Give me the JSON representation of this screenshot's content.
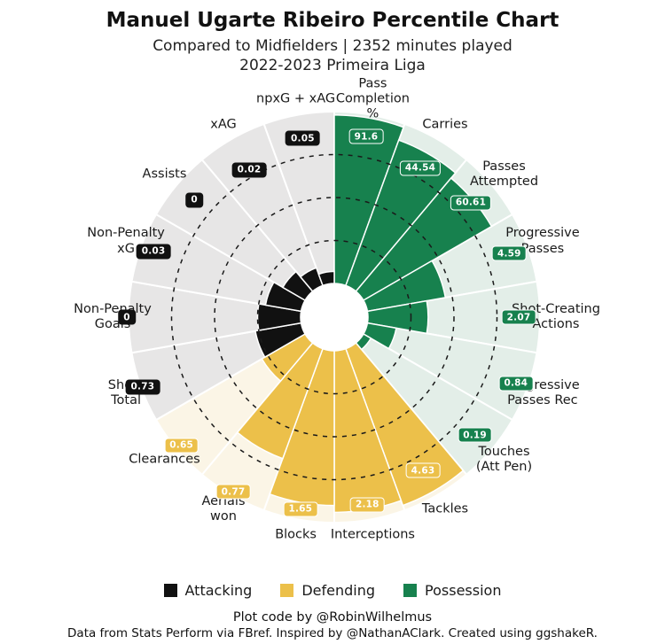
{
  "header": {
    "title": "Manuel Ugarte Ribeiro Percentile Chart",
    "subtitle1": "Compared to Midfielders | 2352 minutes played",
    "subtitle2": "2022-2023 Primeira Liga"
  },
  "chart_data": {
    "type": "bar",
    "variant": "circular-percentile-pizza",
    "title": "Manuel Ugarte Ribeiro Percentile Chart",
    "subtitle": "Compared to Midfielders | 2352 minutes played",
    "season": "2022-2023 Primeira Liga",
    "units": "bar length = percentile (0-100); badge shows per-90 value",
    "percentile_range": [
      0,
      100
    ],
    "gridlines": [
      25,
      50,
      75
    ],
    "grid_style": "dashed",
    "legend_position": "bottom",
    "groups": {
      "attacking": {
        "name": "Attacking",
        "bar": "#111111",
        "bg": "#e7e6e6",
        "badge_text": "#ffffff"
      },
      "defending": {
        "name": "Defending",
        "bar": "#ecc04a",
        "bg": "#fbf5e6",
        "badge_text": "#ffffff"
      },
      "possession": {
        "name": "Possession",
        "bar": "#17814e",
        "bg": "#e3eee8",
        "badge_text": "#ffffff"
      }
    },
    "slices": [
      {
        "label": "Pass\nCompletion\n%",
        "group": "possession",
        "value": "91.6",
        "percentile": 98
      },
      {
        "label": "Carries",
        "group": "possession",
        "value": "44.54",
        "percentile": 90
      },
      {
        "label": "Passes\nAttempted",
        "group": "possession",
        "value": "60.61",
        "percentile": 86
      },
      {
        "label": "Progressive\nPasses",
        "group": "possession",
        "value": "4.59",
        "percentile": 46
      },
      {
        "label": "Shot-Creating\nActions",
        "group": "possession",
        "value": "2.07",
        "percentile": 35
      },
      {
        "label": "Progressive\nPasses Rec",
        "group": "possession",
        "value": "0.84",
        "percentile": 17
      },
      {
        "label": "Touches\n(Att Pen)",
        "group": "possession",
        "value": "0.19",
        "percentile": 5
      },
      {
        "label": "Tackles",
        "group": "defending",
        "value": "4.63",
        "percentile": 97
      },
      {
        "label": "Interceptions",
        "group": "defending",
        "value": "2.18",
        "percentile": 94
      },
      {
        "label": "Blocks",
        "group": "defending",
        "value": "1.65",
        "percentile": 90
      },
      {
        "label": "Aerials\nwon",
        "group": "defending",
        "value": "0.77",
        "percentile": 68
      },
      {
        "label": "Clearances",
        "group": "defending",
        "value": "0.65",
        "percentile": 29
      },
      {
        "label": "Shots\nTotal",
        "group": "attacking",
        "value": "0.73",
        "percentile": 27
      },
      {
        "label": "Non-Penalty\nGoals",
        "group": "attacking",
        "value": "0",
        "percentile": 25
      },
      {
        "label": "Non-Penalty\nxG",
        "group": "attacking",
        "value": "0.03",
        "percentile": 21
      },
      {
        "label": "Assists",
        "group": "attacking",
        "value": "0",
        "percentile": 15
      },
      {
        "label": "xAG",
        "group": "attacking",
        "value": "0.02",
        "percentile": 11
      },
      {
        "label": "npxG + xAG",
        "group": "attacking",
        "value": "0.05",
        "percentile": 7
      }
    ]
  },
  "legend": {
    "items": [
      {
        "label": "Attacking",
        "color": "#111111"
      },
      {
        "label": "Defending",
        "color": "#ecc04a"
      },
      {
        "label": "Possession",
        "color": "#17814e"
      }
    ]
  },
  "footer": {
    "line1": "Plot code by @RobinWilhelmus",
    "line2": "Data from Stats Perform via FBref. Inspired by @NathanAClark. Created using ggshakeR."
  }
}
